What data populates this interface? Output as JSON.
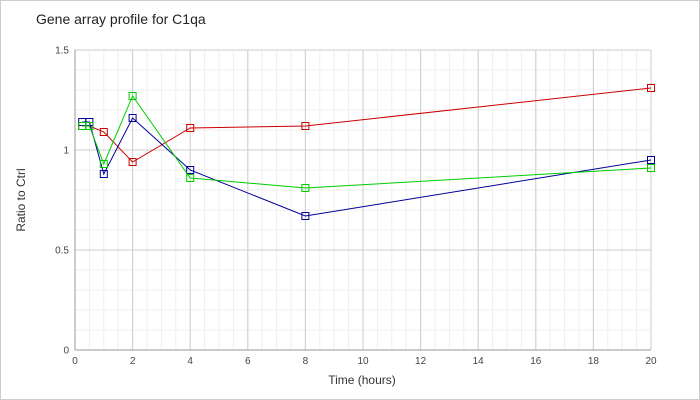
{
  "chart_data": {
    "type": "line",
    "title": "Gene array profile for C1qa",
    "xlabel": "Time (hours)",
    "ylabel": "Ratio to Ctrl",
    "xlim": [
      0,
      20
    ],
    "ylim": [
      0,
      1.5
    ],
    "x_ticks": [
      "0",
      "2",
      "4",
      "6",
      "8",
      "10",
      "12",
      "14",
      "16",
      "18",
      "20"
    ],
    "y_ticks": [
      "0",
      "0.5",
      "1",
      "1.5"
    ],
    "grid": true,
    "legend": "none",
    "marker": "square",
    "x": [
      0.25,
      0.5,
      1,
      2,
      4,
      8,
      20
    ],
    "series": [
      {
        "color": "#cc0000",
        "values": [
          1.12,
          1.12,
          1.09,
          0.94,
          1.11,
          1.12,
          1.31
        ]
      },
      {
        "color": "#000099",
        "values": [
          1.14,
          1.14,
          0.88,
          1.16,
          0.9,
          0.67,
          0.95
        ]
      },
      {
        "color": "#00cc00",
        "values": [
          1.12,
          1.12,
          0.93,
          1.27,
          0.86,
          0.81,
          0.91
        ]
      }
    ]
  }
}
